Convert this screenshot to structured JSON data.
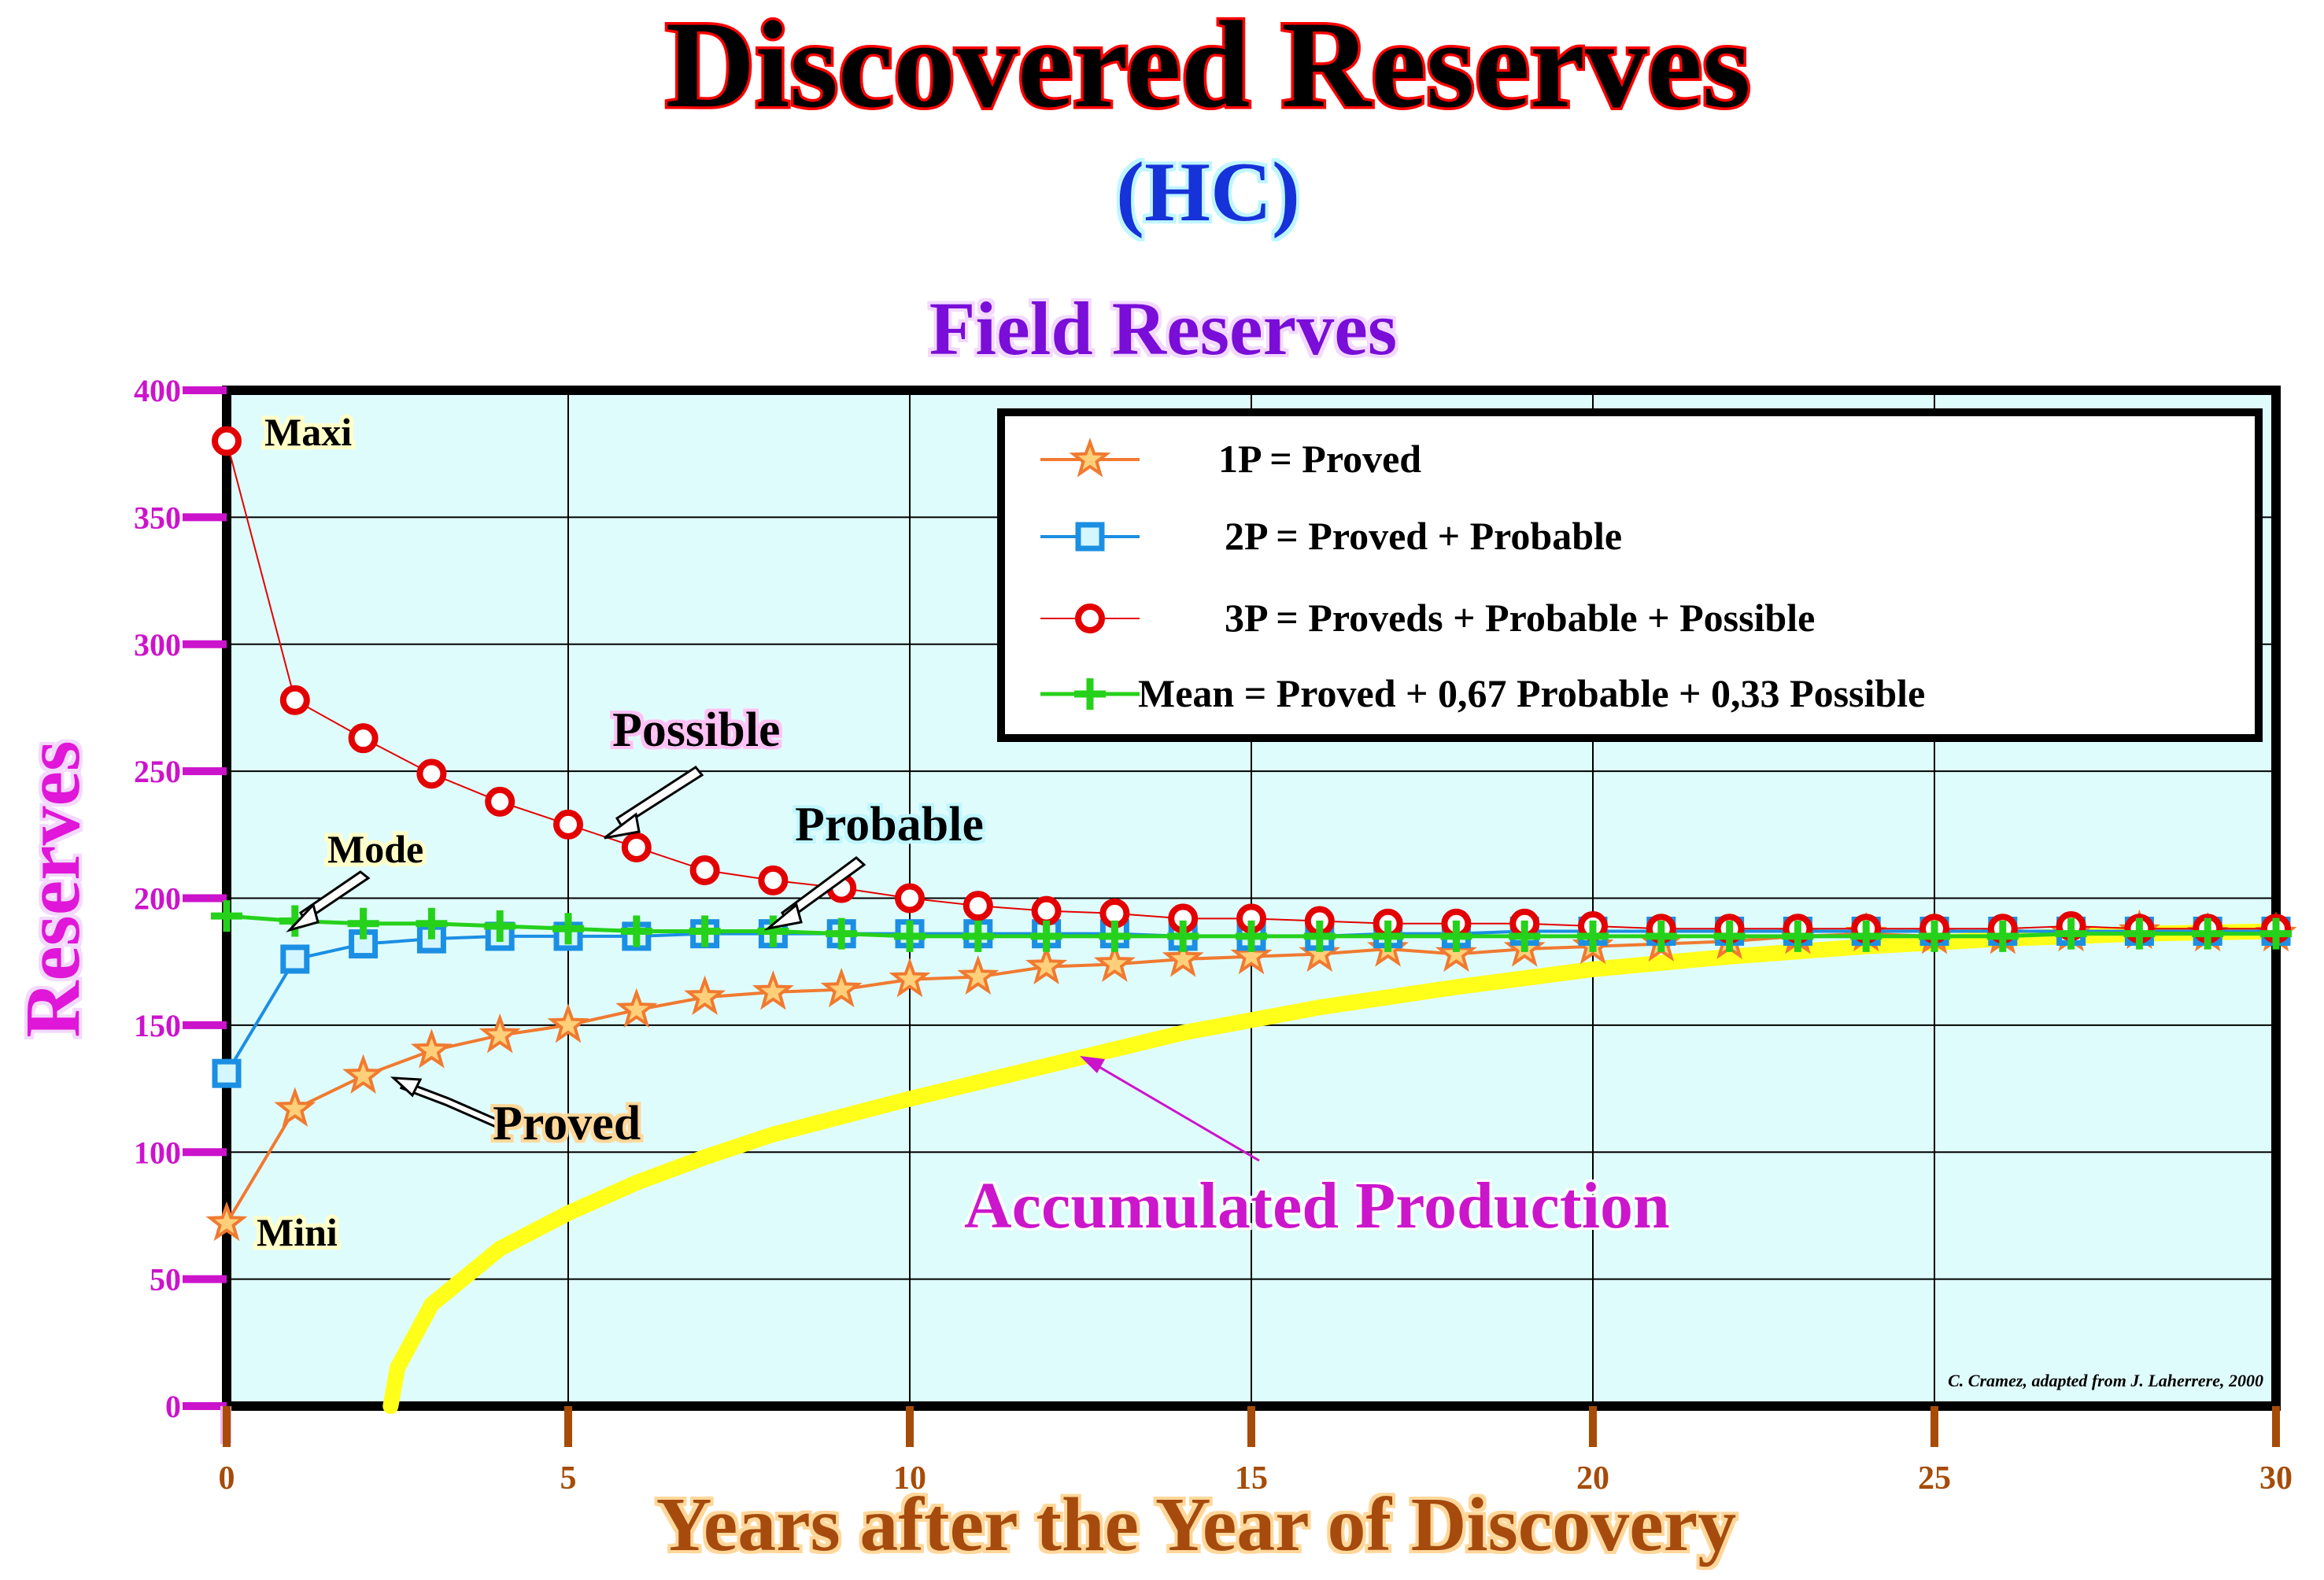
{
  "titles": {
    "main": "Discovered Reserves",
    "sub": "(HC)",
    "chart": "Field Reserves"
  },
  "credit": "C. Cramez, adapted from J. Laherrere, 2000",
  "colors": {
    "plot_bg": "#dffcfc",
    "frame": "#000000",
    "grid": "#000000",
    "title_fill": "#000000",
    "title_outline": "#ff0000",
    "sub_title": "#1633d9",
    "chart_title": "#7a10d8",
    "ylabel": "#e013d8",
    "xlabel": "#a64c08",
    "ytick": "#cc13cc",
    "xtick": "#a64c08",
    "proved": "#f07a30",
    "probable_2p": "#1b8fe3",
    "possible_3p": "#e30000",
    "mean": "#26d11b",
    "accumulated": "#ffff1a",
    "accumulated_label": "#cc13cc",
    "note_bg": "#ffffc8"
  },
  "chart_data": {
    "type": "line",
    "xlabel": "Years after the Year of Discovery",
    "ylabel": "Reserves",
    "xlim": [
      0,
      30
    ],
    "ylim": [
      0,
      400
    ],
    "xticks": [
      0,
      5,
      10,
      15,
      20,
      25,
      30
    ],
    "yticks": [
      0,
      50,
      100,
      150,
      200,
      250,
      300,
      350,
      400
    ],
    "grid": true,
    "legend_position": "top-right",
    "series": [
      {
        "key": "p1",
        "name": "1P = Proved",
        "marker": "star",
        "x": [
          0,
          1,
          2,
          3,
          4,
          5,
          6,
          7,
          8,
          9,
          10,
          11,
          12,
          13,
          14,
          15,
          16,
          17,
          18,
          19,
          20,
          21,
          22,
          23,
          24,
          25,
          26,
          27,
          28,
          29,
          30
        ],
        "y": [
          72,
          117,
          130,
          140,
          146,
          150,
          156,
          161,
          163,
          164,
          168,
          169,
          173,
          174,
          176,
          177,
          178,
          180,
          178,
          180,
          181,
          182,
          183,
          185,
          186,
          185,
          185,
          186,
          187,
          186,
          186
        ]
      },
      {
        "key": "p2",
        "name": "2P = Proved + Probable",
        "marker": "square",
        "x": [
          0,
          1,
          2,
          3,
          4,
          5,
          6,
          7,
          8,
          9,
          10,
          11,
          12,
          13,
          14,
          15,
          16,
          17,
          18,
          19,
          20,
          21,
          22,
          23,
          24,
          25,
          26,
          27,
          28,
          29,
          30
        ],
        "y": [
          131,
          176,
          182,
          184,
          185,
          185,
          185,
          186,
          186,
          186,
          186,
          186,
          186,
          186,
          185,
          185,
          185,
          186,
          186,
          187,
          187,
          187,
          187,
          187,
          187,
          187,
          187,
          187,
          187,
          187,
          187
        ]
      },
      {
        "key": "p3",
        "name": "3P = Proveds + Probable + Possible",
        "marker": "circle",
        "x": [
          0,
          1,
          2,
          3,
          4,
          5,
          6,
          7,
          8,
          9,
          10,
          11,
          12,
          13,
          14,
          15,
          16,
          17,
          18,
          19,
          20,
          21,
          22,
          23,
          24,
          25,
          26,
          27,
          28,
          29,
          30
        ],
        "y": [
          380,
          278,
          263,
          249,
          238,
          229,
          220,
          211,
          207,
          204,
          200,
          197,
          195,
          194,
          192,
          192,
          191,
          190,
          190,
          190,
          189,
          188,
          188,
          188,
          188,
          188,
          188,
          189,
          188,
          188,
          188
        ]
      },
      {
        "key": "mean",
        "name": "Mean = Proved + 0,67 Probable + 0,33 Possible",
        "marker": "plus",
        "x": [
          0,
          1,
          2,
          3,
          4,
          5,
          6,
          7,
          8,
          9,
          10,
          11,
          12,
          13,
          14,
          15,
          16,
          17,
          18,
          19,
          20,
          21,
          22,
          23,
          24,
          25,
          26,
          27,
          28,
          29,
          30
        ],
        "y": [
          193,
          191,
          190,
          190,
          189,
          188,
          187,
          187,
          187,
          186,
          185,
          185,
          185,
          185,
          185,
          185,
          185,
          185,
          185,
          185,
          185,
          185,
          185,
          185,
          185,
          185,
          185,
          186,
          186,
          186,
          186
        ]
      }
    ],
    "accumulated_production": {
      "label": "Accumulated Production",
      "x": [
        2.4,
        2.5,
        3,
        4,
        5,
        6,
        7,
        8,
        9,
        10,
        12,
        14,
        16,
        18,
        20,
        22,
        24,
        26,
        28,
        30
      ],
      "y": [
        0,
        15,
        40,
        62,
        76,
        88,
        98,
        107,
        114,
        121,
        134,
        147,
        157,
        165,
        172,
        177,
        181,
        184,
        186,
        187
      ]
    },
    "annotations": [
      {
        "key": "maxi",
        "text": "Maxi",
        "x": 0,
        "y": 380
      },
      {
        "key": "mini",
        "text": "Mini",
        "x": 0,
        "y": 72
      },
      {
        "key": "mode",
        "text": "Mode",
        "x": 1,
        "y": 191
      },
      {
        "key": "possible",
        "text": "Possible",
        "x": 5.6,
        "y": 223
      },
      {
        "key": "probable",
        "text": "Probable",
        "x": 8,
        "y": 189
      },
      {
        "key": "proved",
        "text": "Proved",
        "x": 2.6,
        "y": 130
      },
      {
        "key": "accum",
        "text": "Accumulated Production",
        "x": 12.5,
        "y": 140
      }
    ]
  }
}
